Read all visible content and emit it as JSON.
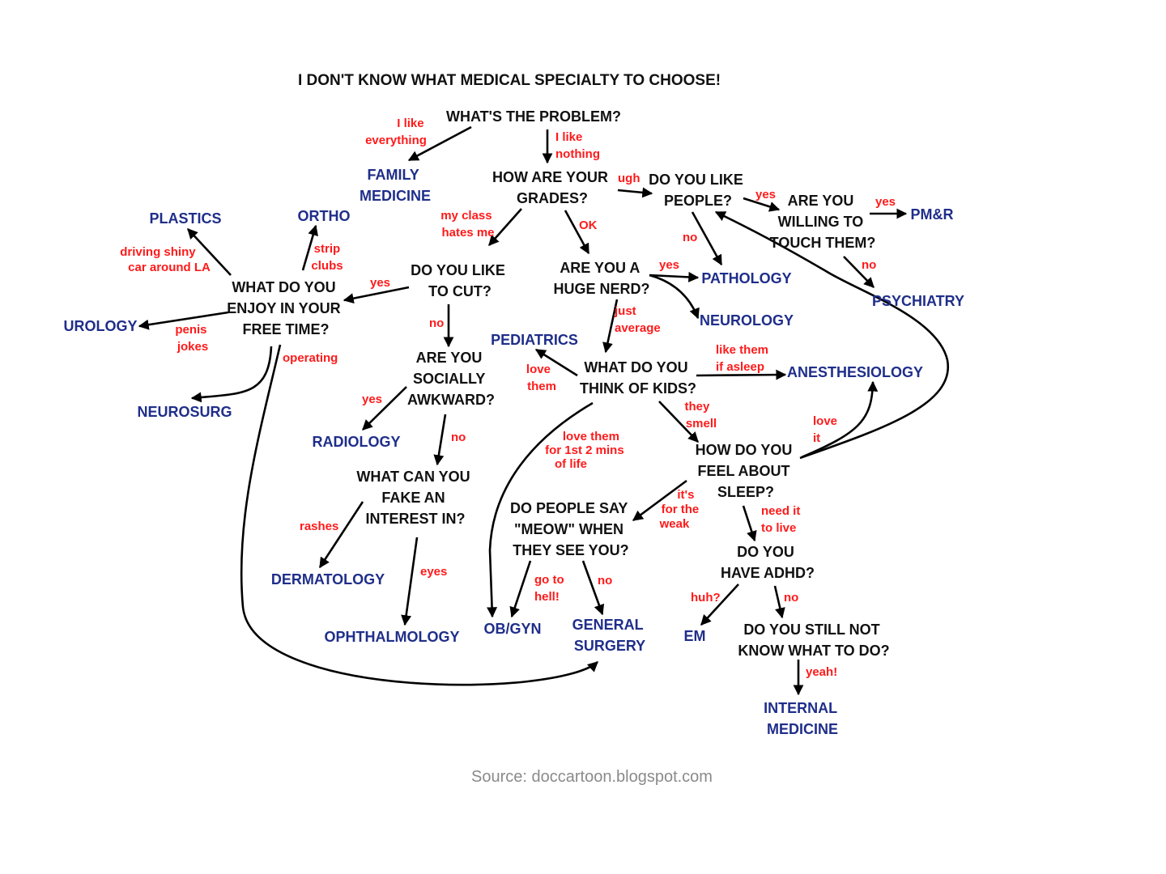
{
  "title": "I DON'T KNOW WHAT MEDICAL SPECIALTY TO CHOOSE!",
  "source": "Source: doccartoon.blogspot.com",
  "colors": {
    "question": "#111111",
    "specialty": "#1f2e8a",
    "edge_label": "#ff1a1a",
    "source": "#8a8a8a"
  },
  "questions": {
    "problem": [
      "WHAT'S THE PROBLEM?"
    ],
    "grades": [
      "HOW ARE YOUR",
      "GRADES?"
    ],
    "people": [
      "DO YOU LIKE",
      "PEOPLE?"
    ],
    "touch": [
      "ARE YOU",
      "WILLING TO",
      "TOUCH THEM?"
    ],
    "cut": [
      "DO YOU LIKE",
      "TO CUT?"
    ],
    "nerd": [
      "ARE YOU A",
      "HUGE NERD?"
    ],
    "free_time": [
      "WHAT DO YOU",
      "ENJOY IN YOUR",
      "FREE TIME?"
    ],
    "awkward": [
      "ARE YOU",
      "SOCIALLY",
      "AWKWARD?"
    ],
    "kids": [
      "WHAT DO YOU",
      "THINK OF KIDS?"
    ],
    "fake": [
      "WHAT CAN YOU",
      "FAKE AN",
      "INTEREST IN?"
    ],
    "sleep": [
      "HOW DO YOU",
      "FEEL ABOUT",
      "SLEEP?"
    ],
    "meow": [
      "DO PEOPLE SAY",
      "\"MEOW\" WHEN",
      "THEY SEE YOU?"
    ],
    "adhd": [
      "DO YOU",
      "HAVE ADHD?"
    ],
    "still": [
      "DO YOU STILL NOT",
      "KNOW WHAT TO DO?"
    ]
  },
  "specialties": {
    "family": [
      "FAMILY",
      "MEDICINE"
    ],
    "pmr": [
      "PM&R"
    ],
    "plastics": [
      "PLASTICS"
    ],
    "ortho": [
      "ORTHO"
    ],
    "pathology": [
      "PATHOLOGY"
    ],
    "psychiatry": [
      "PSYCHIATRY"
    ],
    "neurology": [
      "NEUROLOGY"
    ],
    "urology": [
      "UROLOGY"
    ],
    "pediatrics": [
      "PEDIATRICS"
    ],
    "anesthesiology": [
      "ANESTHESIOLOGY"
    ],
    "neurosurg": [
      "NEUROSURG"
    ],
    "radiology": [
      "RADIOLOGY"
    ],
    "dermatology": [
      "DERMATOLOGY"
    ],
    "ophthalmology": [
      "OPHTHALMOLOGY"
    ],
    "obgyn": [
      "OB/GYN"
    ],
    "general_surgery": [
      "GENERAL",
      "SURGERY"
    ],
    "em": [
      "EM"
    ],
    "internal_medicine": [
      "INTERNAL",
      "MEDICINE"
    ]
  },
  "edge_labels": {
    "like_everything": [
      "I like",
      "everything"
    ],
    "like_nothing": [
      "I like",
      "nothing"
    ],
    "ugh": [
      "ugh"
    ],
    "people_yes": [
      "yes"
    ],
    "touch_yes": [
      "yes"
    ],
    "people_no": [
      "no"
    ],
    "touch_no": [
      "no"
    ],
    "class_hates": [
      "my class",
      "hates me"
    ],
    "ok": [
      "OK"
    ],
    "nerd_yes": [
      "yes"
    ],
    "shiny_car": [
      "driving shiny",
      "car around LA"
    ],
    "strip_clubs": [
      "strip",
      "clubs"
    ],
    "cut_yes": [
      "yes"
    ],
    "penis_jokes": [
      "penis",
      "jokes"
    ],
    "operating": [
      "operating"
    ],
    "cut_no": [
      "no"
    ],
    "just_average": [
      "just",
      "average"
    ],
    "love_them": [
      "love",
      "them"
    ],
    "like_asleep": [
      "like them",
      "if asleep"
    ],
    "awkward_yes": [
      "yes"
    ],
    "awkward_no": [
      "no"
    ],
    "they_smell": [
      "they",
      "smell"
    ],
    "love_it": [
      "love",
      "it"
    ],
    "love_first_mins": [
      "love them",
      "for 1st 2 mins",
      "of life"
    ],
    "rashes": [
      "rashes"
    ],
    "eyes": [
      "eyes"
    ],
    "for_weak": [
      "it's",
      "for the",
      "weak"
    ],
    "need_live": [
      "need it",
      "to live"
    ],
    "go_hell": [
      "go to",
      "hell!"
    ],
    "meow_no": [
      "no"
    ],
    "huh": [
      "huh?"
    ],
    "adhd_no": [
      "no"
    ],
    "yeah": [
      "yeah!"
    ]
  },
  "edges": [
    {
      "from": "problem",
      "to": "family",
      "label": "like_everything"
    },
    {
      "from": "problem",
      "to": "grades",
      "label": "like_nothing"
    },
    {
      "from": "grades",
      "to": "people",
      "label": "ugh"
    },
    {
      "from": "grades",
      "to": "cut",
      "label": "class_hates"
    },
    {
      "from": "grades",
      "to": "nerd",
      "label": "ok"
    },
    {
      "from": "people",
      "to": "touch",
      "label": "people_yes"
    },
    {
      "from": "people",
      "to": "pathology",
      "label": "people_no"
    },
    {
      "from": "touch",
      "to": "pmr",
      "label": "touch_yes"
    },
    {
      "from": "touch",
      "to": "psychiatry",
      "label": "touch_no"
    },
    {
      "from": "nerd",
      "to": "pathology",
      "label": "nerd_yes"
    },
    {
      "from": "nerd",
      "to": "neurology",
      "label": "nerd_yes"
    },
    {
      "from": "nerd",
      "to": "kids",
      "label": "just_average"
    },
    {
      "from": "cut",
      "to": "free_time",
      "label": "cut_yes"
    },
    {
      "from": "cut",
      "to": "awkward",
      "label": "cut_no"
    },
    {
      "from": "free_time",
      "to": "plastics",
      "label": "shiny_car"
    },
    {
      "from": "free_time",
      "to": "ortho",
      "label": "strip_clubs"
    },
    {
      "from": "free_time",
      "to": "urology",
      "label": "penis_jokes"
    },
    {
      "from": "free_time",
      "to": "neurosurg",
      "label": "operating"
    },
    {
      "from": "free_time",
      "to": "general_surgery",
      "label": "operating"
    },
    {
      "from": "awkward",
      "to": "radiology",
      "label": "awkward_yes"
    },
    {
      "from": "awkward",
      "to": "fake",
      "label": "awkward_no"
    },
    {
      "from": "fake",
      "to": "dermatology",
      "label": "rashes"
    },
    {
      "from": "fake",
      "to": "ophthalmology",
      "label": "eyes"
    },
    {
      "from": "kids",
      "to": "pediatrics",
      "label": "love_them"
    },
    {
      "from": "kids",
      "to": "anesthesiology",
      "label": "like_asleep"
    },
    {
      "from": "kids",
      "to": "sleep",
      "label": "they_smell"
    },
    {
      "from": "kids",
      "to": "obgyn",
      "label": "love_first_mins"
    },
    {
      "from": "sleep",
      "to": "anesthesiology",
      "label": "love_it"
    },
    {
      "from": "sleep",
      "to": "people",
      "label": "love_it"
    },
    {
      "from": "sleep",
      "to": "meow",
      "label": "for_weak"
    },
    {
      "from": "sleep",
      "to": "adhd",
      "label": "need_live"
    },
    {
      "from": "meow",
      "to": "obgyn",
      "label": "go_hell"
    },
    {
      "from": "meow",
      "to": "general_surgery",
      "label": "meow_no"
    },
    {
      "from": "adhd",
      "to": "em",
      "label": "huh"
    },
    {
      "from": "adhd",
      "to": "still",
      "label": "adhd_no"
    },
    {
      "from": "still",
      "to": "internal_medicine",
      "label": "yeah"
    }
  ]
}
